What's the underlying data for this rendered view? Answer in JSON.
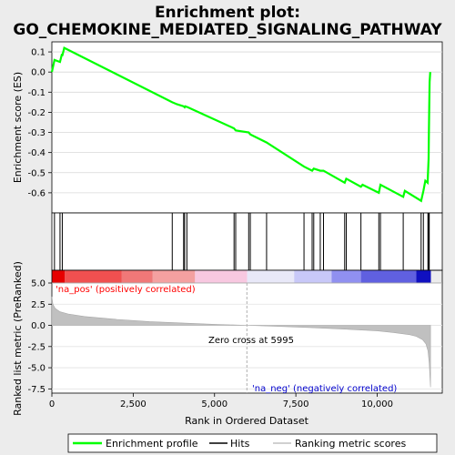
{
  "title": "Enrichment plot:",
  "subtitle": "GO_CHEMOKINE_MEDIATED_SIGNALING_PATHWAY",
  "colors": {
    "es_line": "#00ff00",
    "hits": "#000000",
    "metric_fill": "#c0c0c0",
    "zero_line": "#b0b0b0",
    "pos_label": "#ff0000",
    "neg_label": "#0000cc"
  },
  "chart_data": [
    {
      "type": "line",
      "panel": "enrichment-score",
      "ylabel": "Enrichment score (ES)",
      "ylim": [
        -0.7,
        0.15
      ],
      "yticks": [
        "0.1",
        "0.0",
        "-0.1",
        "-0.2",
        "-0.3",
        "-0.4",
        "-0.5",
        "-0.6"
      ],
      "ytick_values": [
        0.1,
        0.0,
        -0.1,
        -0.2,
        -0.3,
        -0.4,
        -0.5,
        -0.6
      ],
      "xlim": [
        0,
        12000
      ],
      "grid": true,
      "series": [
        {
          "name": "Enrichment profile",
          "x": [
            0,
            80,
            250,
            310,
            320,
            380,
            3700,
            3850,
            4050,
            4080,
            4100,
            4180,
            5600,
            5650,
            6050,
            6100,
            6600,
            7750,
            8000,
            8050,
            8250,
            8350,
            9000,
            9050,
            9500,
            9550,
            10050,
            10100,
            10800,
            10850,
            11350,
            11420,
            11480,
            11550,
            11580,
            11590,
            11600,
            11610,
            11630
          ],
          "y": [
            0.0,
            0.06,
            0.05,
            0.09,
            0.08,
            0.12,
            -0.15,
            -0.16,
            -0.17,
            -0.175,
            -0.17,
            -0.175,
            -0.28,
            -0.29,
            -0.3,
            -0.31,
            -0.35,
            -0.47,
            -0.49,
            -0.48,
            -0.49,
            -0.49,
            -0.55,
            -0.53,
            -0.57,
            -0.56,
            -0.6,
            -0.56,
            -0.62,
            -0.59,
            -0.64,
            -0.59,
            -0.54,
            -0.55,
            -0.43,
            -0.31,
            -0.17,
            -0.05,
            0.0
          ]
        }
      ]
    },
    {
      "type": "hits",
      "panel": "hits",
      "series": [
        {
          "name": "Hits",
          "x": [
            80,
            250,
            320,
            3700,
            4050,
            4080,
            4150,
            5600,
            5650,
            6050,
            6100,
            6600,
            7750,
            8000,
            8050,
            8250,
            8350,
            9000,
            9050,
            9500,
            10050,
            10100,
            10800,
            11350,
            11420,
            11560,
            11580,
            11600
          ]
        }
      ]
    },
    {
      "type": "heatmap",
      "panel": "rank-colorbar",
      "blocks": [
        {
          "from": 0,
          "to": 400,
          "color": "#e60000"
        },
        {
          "from": 400,
          "to": 2150,
          "color": "#f05050"
        },
        {
          "from": 2150,
          "to": 3100,
          "color": "#f07878"
        },
        {
          "from": 3100,
          "to": 4400,
          "color": "#f4a0a0"
        },
        {
          "from": 4400,
          "to": 6000,
          "color": "#f8c8e0"
        },
        {
          "from": 6000,
          "to": 7450,
          "color": "#e8e8f8"
        },
        {
          "from": 7450,
          "to": 8600,
          "color": "#c8c8f8"
        },
        {
          "from": 8600,
          "to": 9500,
          "color": "#9090f0"
        },
        {
          "from": 9500,
          "to": 11200,
          "color": "#6060e0"
        },
        {
          "from": 11200,
          "to": 11650,
          "color": "#1010c0"
        }
      ]
    },
    {
      "type": "area",
      "panel": "ranked-metric",
      "ylabel": "Ranked list metric (PreRanked)",
      "xlabel": "Rank in Ordered Dataset",
      "ylim": [
        -8,
        5
      ],
      "yticks": [
        "5.0",
        "2.5",
        "0.0",
        "-2.5",
        "-5.0",
        "-7.5"
      ],
      "ytick_values": [
        5.0,
        2.5,
        0.0,
        -2.5,
        -5.0,
        -7.5
      ],
      "xlim": [
        0,
        12000
      ],
      "xticks": [
        "0",
        "2,500",
        "5,000",
        "7,500",
        "10,000"
      ],
      "xtick_values": [
        0,
        2500,
        5000,
        7500,
        10000
      ],
      "series": [
        {
          "name": "Ranking metric scores",
          "x": [
            0,
            30,
            100,
            250,
            500,
            1000,
            2000,
            3000,
            4000,
            5000,
            5995,
            7000,
            8000,
            9000,
            10000,
            10500,
            11000,
            11200,
            11400,
            11500,
            11560,
            11600,
            11640
          ],
          "y": [
            3.4,
            2.5,
            2.0,
            1.6,
            1.35,
            1.05,
            0.7,
            0.45,
            0.28,
            0.12,
            0.0,
            -0.12,
            -0.28,
            -0.45,
            -0.65,
            -0.85,
            -1.1,
            -1.3,
            -1.7,
            -2.2,
            -3.0,
            -4.5,
            -7.3
          ]
        }
      ],
      "annotations": {
        "pos": "'na_pos' (positively correlated)",
        "neg": "'na_neg' (negatively correlated)",
        "zero": "Zero cross at 5995",
        "zero_x": 5995
      }
    }
  ],
  "legend": {
    "items": [
      "Enrichment profile",
      "Hits",
      "Ranking metric scores"
    ]
  }
}
